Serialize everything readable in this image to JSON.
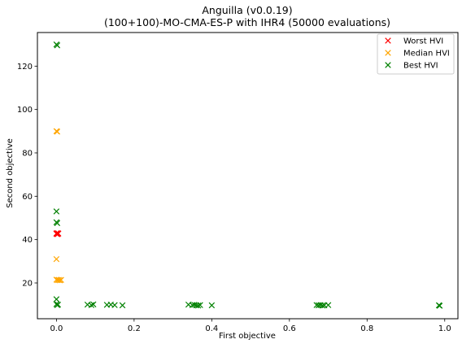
{
  "chart_data": {
    "type": "scatter",
    "title": "Anguilla (v0.0.19)",
    "subtitle": "(100+100)-MO-CMA-ES-P with IHR4 (50000 evaluations)",
    "xlabel": "First objective",
    "ylabel": "Second objective",
    "xlim": [
      -0.049,
      1.034
    ],
    "ylim": [
      3.5,
      135.5
    ],
    "xticks": [
      0.0,
      0.2,
      0.4,
      0.6,
      0.8,
      1.0
    ],
    "xtick_labels": [
      "0.0",
      "0.2",
      "0.4",
      "0.6",
      "0.8",
      "1.0"
    ],
    "yticks": [
      20,
      40,
      60,
      80,
      100,
      120
    ],
    "ytick_labels": [
      "20",
      "40",
      "60",
      "80",
      "100",
      "120"
    ],
    "grid": false,
    "legend_position": "top-right",
    "marker": "x",
    "series": [
      {
        "name": "Worst HVI",
        "color": "#ff0000",
        "points": [
          [
            0.0,
            42.8
          ],
          [
            0.002,
            42.6
          ],
          [
            0.004,
            42.9
          ],
          [
            0.001,
            43.0
          ],
          [
            0.003,
            42.5
          ],
          [
            0.0,
            42.7
          ],
          [
            0.005,
            42.8
          ]
        ]
      },
      {
        "name": "Median HVI",
        "color": "#ffa500",
        "points": [
          [
            0.0,
            90.0
          ],
          [
            0.002,
            89.8
          ],
          [
            0.0,
            31.0
          ],
          [
            0.0,
            21.5
          ],
          [
            0.003,
            21.3
          ],
          [
            0.006,
            21.4
          ],
          [
            0.009,
            21.2
          ],
          [
            0.012,
            21.4
          ]
        ]
      },
      {
        "name": "Best HVI",
        "color": "#008000",
        "points": [
          [
            0.0,
            130.0
          ],
          [
            0.002,
            129.6
          ],
          [
            0.0,
            53.0
          ],
          [
            0.0,
            48.0
          ],
          [
            0.002,
            47.6
          ],
          [
            0.0,
            12.5
          ],
          [
            0.0,
            10.2
          ],
          [
            0.002,
            9.8
          ],
          [
            0.004,
            10.0
          ],
          [
            0.08,
            10.0
          ],
          [
            0.09,
            9.8
          ],
          [
            0.095,
            10.1
          ],
          [
            0.13,
            9.9
          ],
          [
            0.14,
            10.0
          ],
          [
            0.15,
            9.8
          ],
          [
            0.17,
            9.7
          ],
          [
            0.34,
            10.0
          ],
          [
            0.35,
            9.8
          ],
          [
            0.355,
            9.9
          ],
          [
            0.36,
            9.7
          ],
          [
            0.365,
            9.6
          ],
          [
            0.37,
            9.8
          ],
          [
            0.4,
            9.7
          ],
          [
            0.67,
            9.8
          ],
          [
            0.675,
            9.7
          ],
          [
            0.68,
            9.8
          ],
          [
            0.685,
            9.6
          ],
          [
            0.69,
            9.7
          ],
          [
            0.7,
            9.8
          ],
          [
            0.985,
            9.7
          ],
          [
            0.987,
            9.5
          ]
        ]
      }
    ]
  }
}
